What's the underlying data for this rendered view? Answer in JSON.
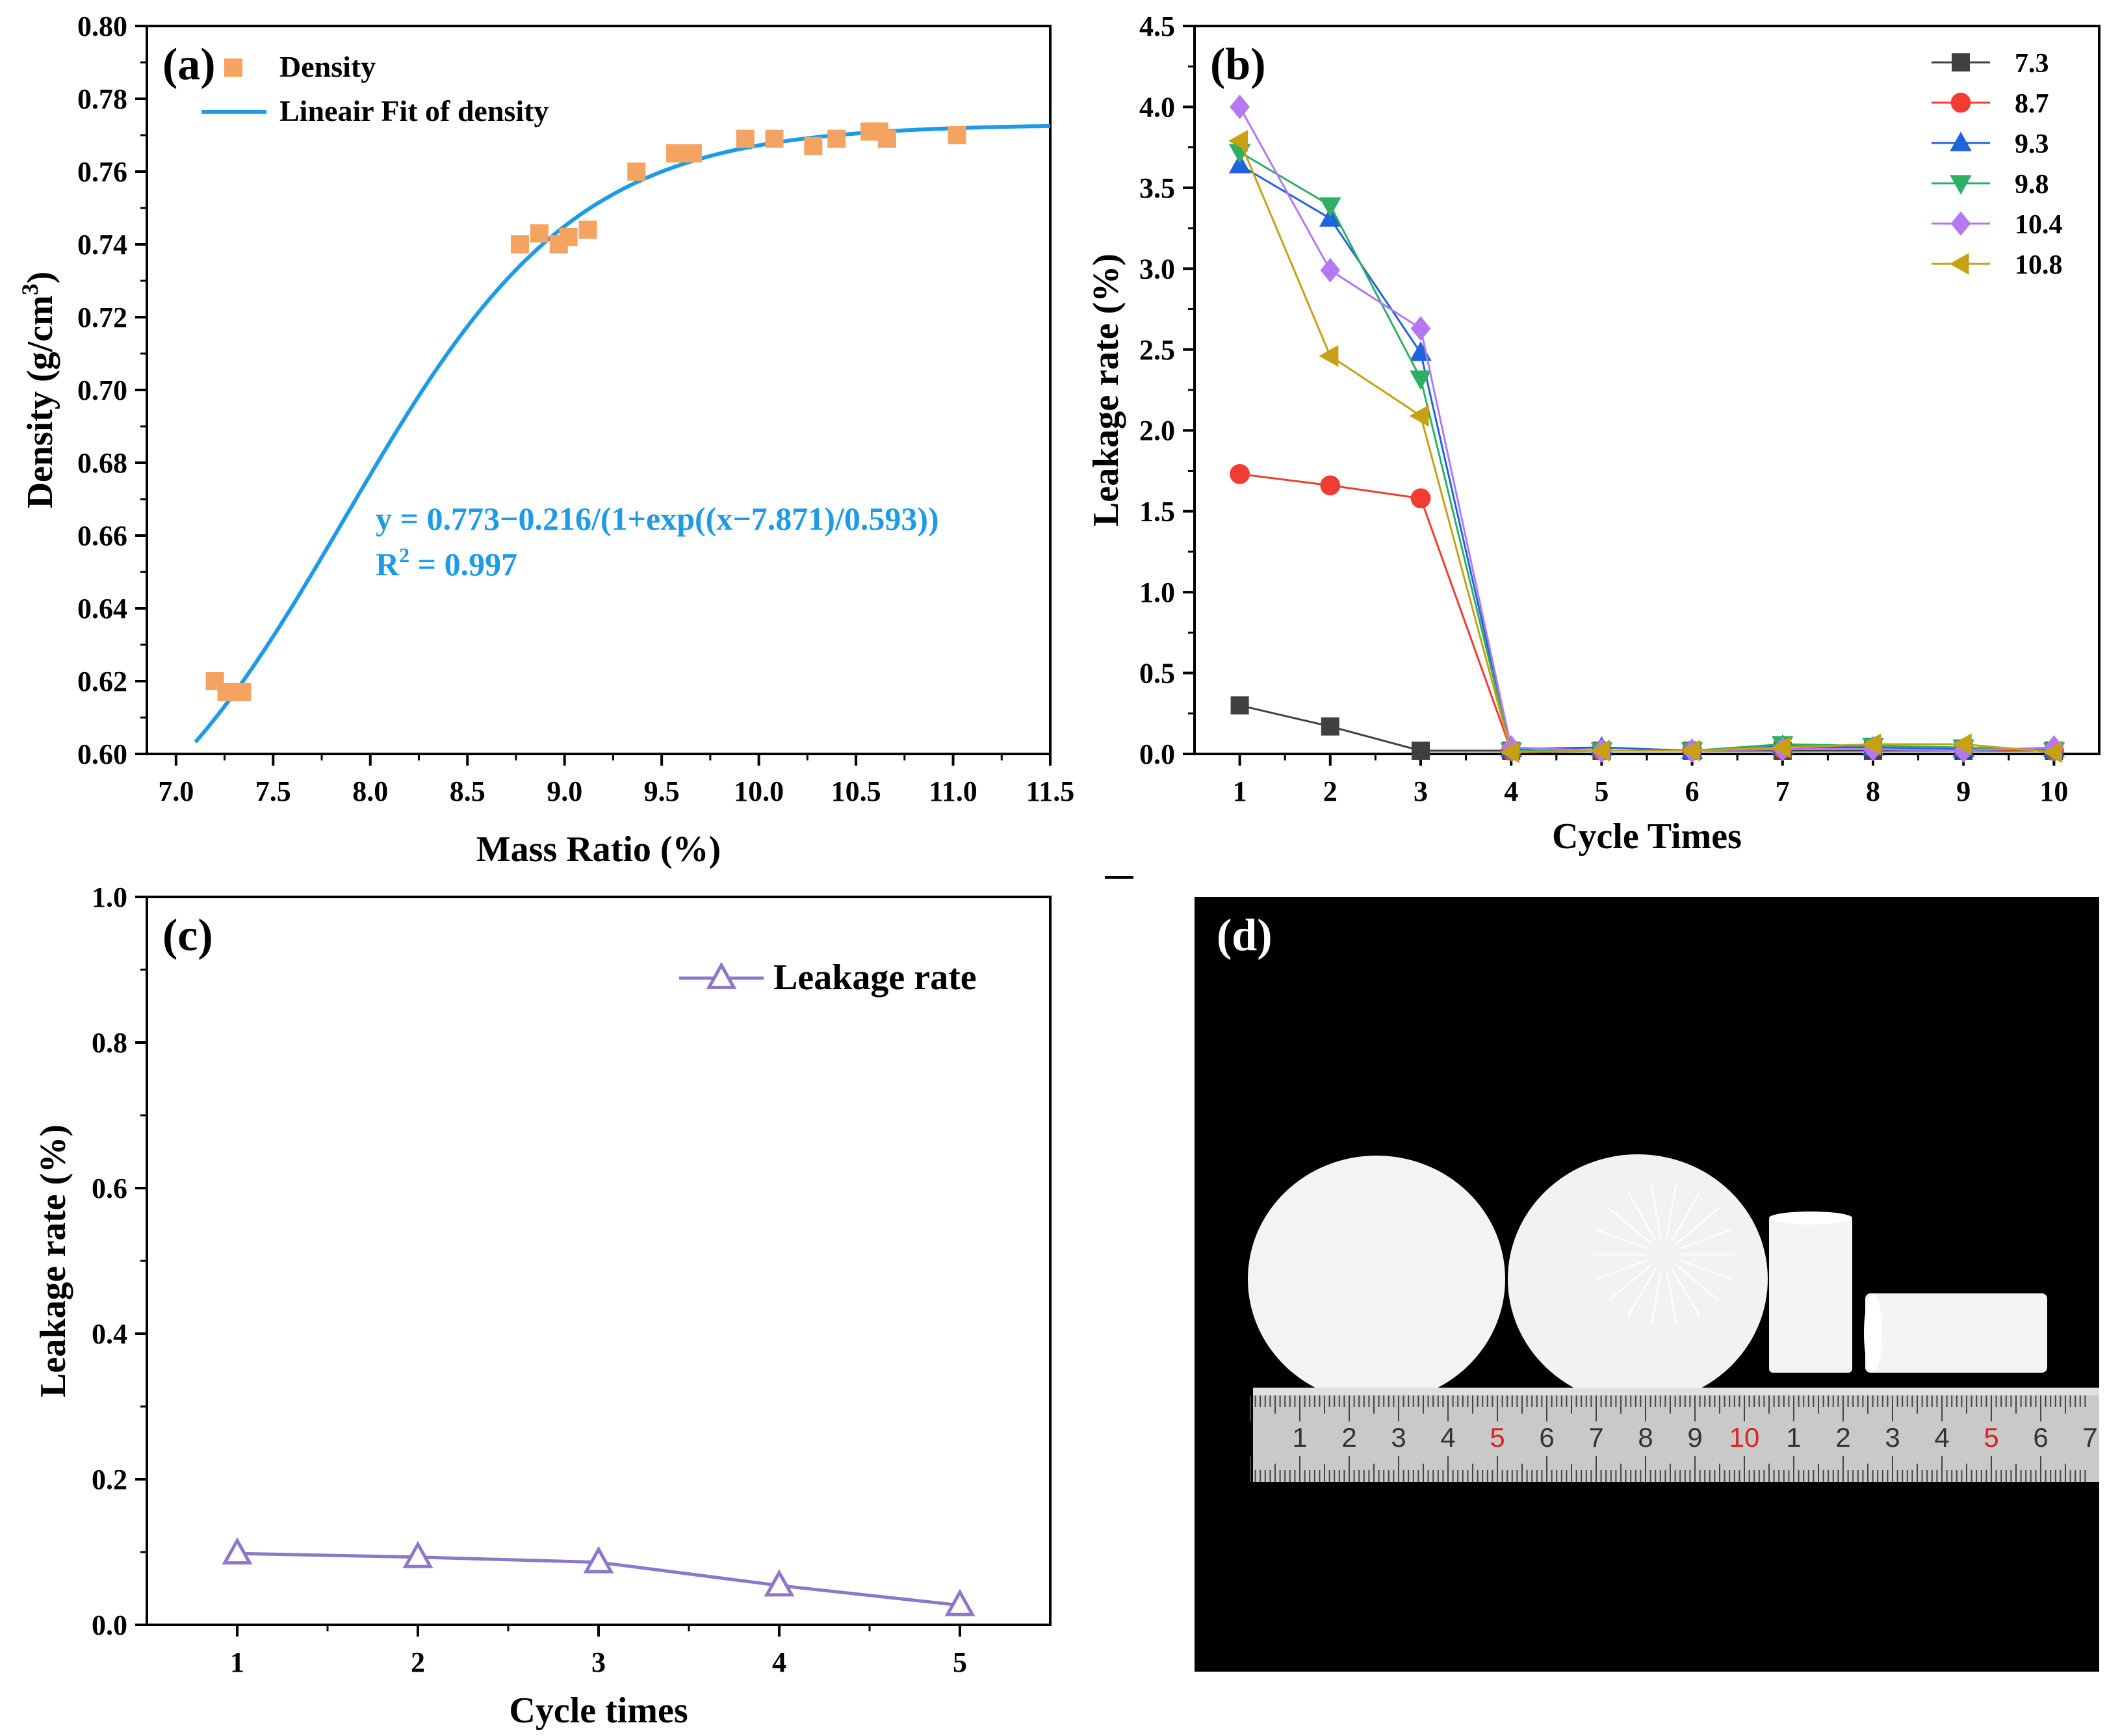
{
  "colors": {
    "density_marker": "#F4A460",
    "fit_line": "#1E9BE6",
    "annotation_text": "#1E9BE6",
    "s73": "#404040",
    "s87": "#F03C32",
    "s93": "#1E64DC",
    "s98": "#2DAF64",
    "s104": "#B478F0",
    "s108": "#C8A014",
    "leak_c": "#8C78C8",
    "photo_bg": "#000000"
  },
  "chart_data": [
    {
      "panel": "(a)",
      "type": "scatter",
      "xlabel": "Mass Ratio (%)",
      "ylabel_main": "Density (g/cm",
      "ylabel_sup": "3",
      "ylabel_end": ")",
      "xlim": [
        6.85,
        11.5
      ],
      "ylim": [
        0.6,
        0.8
      ],
      "xticks": [
        "7.0",
        "7.5",
        "8.0",
        "8.5",
        "9.0",
        "9.5",
        "10.0",
        "10.5",
        "11.0",
        "11.5"
      ],
      "yticks": [
        "0.60",
        "0.62",
        "0.64",
        "0.66",
        "0.68",
        "0.70",
        "0.72",
        "0.74",
        "0.76",
        "0.78",
        "0.80"
      ],
      "legend": [
        "Density",
        "Lineair Fit of density"
      ],
      "annotation_line1": "y = 0.773−0.216/(1+exp((x−7.871)/0.593))",
      "annotation_r2_prefix": "R",
      "annotation_r2_sup": "2",
      "annotation_r2_rest": " = 0.997",
      "fit": {
        "A": 0.773,
        "B": 0.216,
        "x0": 7.871,
        "dx": 0.593,
        "xrange": [
          7.1,
          11.5
        ]
      },
      "series": [
        {
          "name": "Density",
          "x": [
            7.2,
            7.26,
            7.34,
            8.77,
            8.87,
            8.97,
            9.02,
            9.12,
            9.37,
            9.57,
            9.66,
            9.93,
            10.08,
            10.28,
            10.4,
            10.57,
            10.62,
            10.66,
            11.02
          ],
          "y": [
            0.62,
            0.617,
            0.617,
            0.74,
            0.743,
            0.74,
            0.742,
            0.744,
            0.76,
            0.765,
            0.765,
            0.769,
            0.769,
            0.767,
            0.769,
            0.771,
            0.771,
            0.769,
            0.77
          ]
        }
      ]
    },
    {
      "panel": "(b)",
      "type": "line",
      "xlabel": "Cycle Times",
      "ylabel": "Leakage rate (%)",
      "xlim": [
        0.5,
        10.5
      ],
      "ylim": [
        0,
        4.5
      ],
      "xticks": [
        "1",
        "2",
        "3",
        "4",
        "5",
        "6",
        "7",
        "8",
        "9",
        "10"
      ],
      "yticks": [
        "0.0",
        "0.5",
        "1.0",
        "1.5",
        "2.0",
        "2.5",
        "3.0",
        "3.5",
        "4.0",
        "4.5"
      ],
      "x": [
        1,
        2,
        3,
        4,
        5,
        6,
        7,
        8,
        9,
        10
      ],
      "series": [
        {
          "name": "7.3",
          "marker": "square",
          "values": [
            0.3,
            0.17,
            0.02,
            0.02,
            0.02,
            0.02,
            0.02,
            0.02,
            0.02,
            0.02
          ]
        },
        {
          "name": "8.7",
          "marker": "circle",
          "values": [
            1.73,
            1.66,
            1.58,
            0.02,
            0.02,
            0.02,
            0.03,
            0.04,
            0.03,
            0.02
          ]
        },
        {
          "name": "9.3",
          "marker": "triangle-up",
          "values": [
            3.64,
            3.31,
            2.48,
            0.03,
            0.04,
            0.02,
            0.05,
            0.04,
            0.03,
            0.03
          ]
        },
        {
          "name": "9.8",
          "marker": "triangle-down",
          "values": [
            3.72,
            3.39,
            2.32,
            0.02,
            0.02,
            0.02,
            0.06,
            0.05,
            0.04,
            0.02
          ]
        },
        {
          "name": "10.4",
          "marker": "diamond",
          "values": [
            4.0,
            2.99,
            2.63,
            0.04,
            0.02,
            0.02,
            0.03,
            0.03,
            0.02,
            0.04
          ]
        },
        {
          "name": "10.8",
          "marker": "triangle-left",
          "values": [
            3.79,
            2.46,
            2.09,
            0.01,
            0.02,
            0.02,
            0.04,
            0.06,
            0.06,
            0.01
          ]
        }
      ]
    },
    {
      "panel": "(c)",
      "type": "line",
      "xlabel": "Cycle times",
      "ylabel": "Leakage rate (%)",
      "xlim": [
        0.5,
        5.5
      ],
      "ylim": [
        0,
        1.0
      ],
      "xticks": [
        "1",
        "2",
        "3",
        "4",
        "5"
      ],
      "yticks": [
        "0.0",
        "0.2",
        "0.4",
        "0.6",
        "0.8",
        "1.0"
      ],
      "legend": [
        "Leakage rate"
      ],
      "x": [
        1,
        2,
        3,
        4,
        5
      ],
      "series": [
        {
          "name": "Leakage rate",
          "marker": "triangle-up-open",
          "values": [
            0.098,
            0.093,
            0.086,
            0.054,
            0.027
          ]
        }
      ]
    }
  ],
  "panel_d": {
    "label": "(d)",
    "ruler_numbers": [
      "1",
      "2",
      "3",
      "4",
      "5",
      "6",
      "7",
      "8",
      "9",
      "10",
      "1",
      "2",
      "3",
      "4",
      "5",
      "6",
      "7"
    ]
  }
}
